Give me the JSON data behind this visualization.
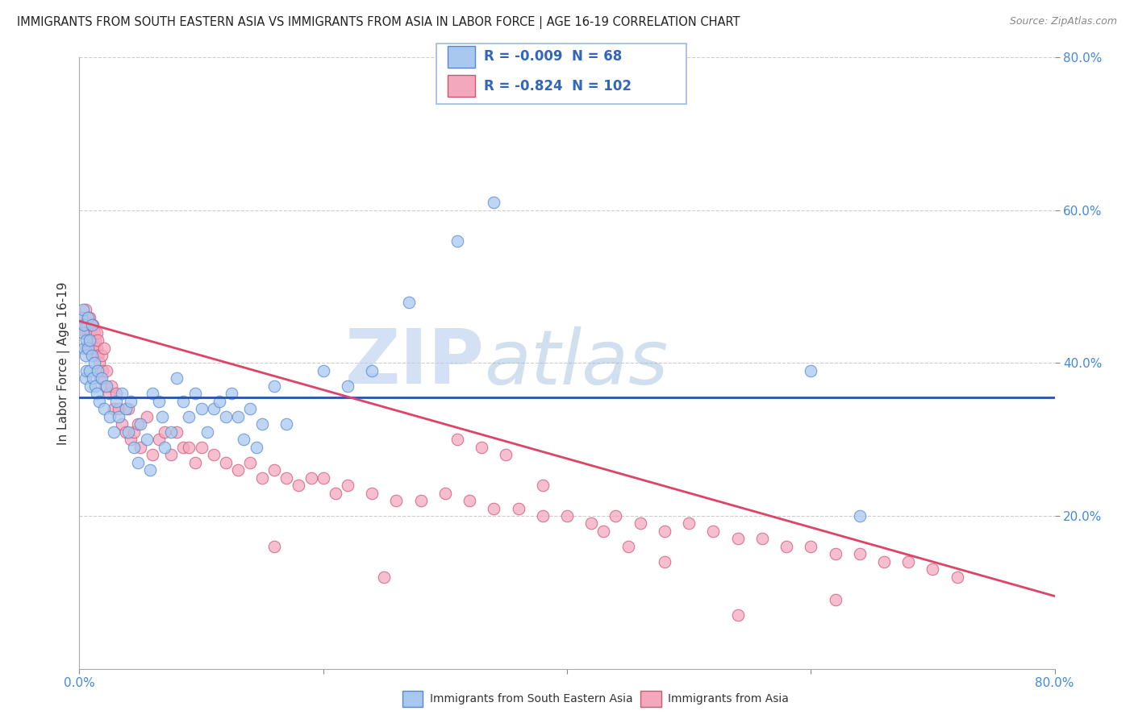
{
  "title": "IMMIGRANTS FROM SOUTH EASTERN ASIA VS IMMIGRANTS FROM ASIA IN LABOR FORCE | AGE 16-19 CORRELATION CHART",
  "source": "Source: ZipAtlas.com",
  "ylabel": "In Labor Force | Age 16-19",
  "xlim": [
    0.0,
    0.8
  ],
  "ylim": [
    0.0,
    0.8
  ],
  "xticks": [
    0.0,
    0.2,
    0.4,
    0.6,
    0.8
  ],
  "yticks": [
    0.2,
    0.4,
    0.6,
    0.8
  ],
  "grid_color": "#cccccc",
  "background_color": "#ffffff",
  "blue_R": "-0.009",
  "blue_N": "68",
  "pink_R": "-0.824",
  "pink_N": "102",
  "blue_color": "#A8C8F0",
  "pink_color": "#F4A8BE",
  "blue_edge_color": "#5588CC",
  "pink_edge_color": "#CC5577",
  "blue_line_color": "#2255AA",
  "pink_line_color": "#DD4466",
  "watermark_zip": "ZIP",
  "watermark_atlas": "atlas",
  "legend_label_blue": "Immigrants from South Eastern Asia",
  "legend_label_pink": "Immigrants from Asia",
  "blue_trend_y0": 0.355,
  "blue_trend_y1": 0.355,
  "pink_trend_y0": 0.455,
  "pink_trend_y1": 0.095,
  "blue_scatter_x": [
    0.002,
    0.003,
    0.003,
    0.004,
    0.004,
    0.005,
    0.005,
    0.006,
    0.006,
    0.007,
    0.007,
    0.008,
    0.008,
    0.009,
    0.01,
    0.01,
    0.011,
    0.012,
    0.013,
    0.014,
    0.015,
    0.016,
    0.018,
    0.02,
    0.022,
    0.025,
    0.028,
    0.03,
    0.032,
    0.035,
    0.038,
    0.04,
    0.042,
    0.045,
    0.048,
    0.05,
    0.055,
    0.058,
    0.06,
    0.065,
    0.068,
    0.07,
    0.075,
    0.08,
    0.085,
    0.09,
    0.095,
    0.1,
    0.105,
    0.11,
    0.115,
    0.12,
    0.125,
    0.13,
    0.135,
    0.14,
    0.145,
    0.15,
    0.16,
    0.17,
    0.2,
    0.22,
    0.24,
    0.27,
    0.31,
    0.34,
    0.6,
    0.64
  ],
  "blue_scatter_y": [
    0.46,
    0.44,
    0.47,
    0.42,
    0.45,
    0.41,
    0.38,
    0.43,
    0.39,
    0.42,
    0.46,
    0.39,
    0.43,
    0.37,
    0.41,
    0.45,
    0.38,
    0.4,
    0.37,
    0.36,
    0.39,
    0.35,
    0.38,
    0.34,
    0.37,
    0.33,
    0.31,
    0.35,
    0.33,
    0.36,
    0.34,
    0.31,
    0.35,
    0.29,
    0.27,
    0.32,
    0.3,
    0.26,
    0.36,
    0.35,
    0.33,
    0.29,
    0.31,
    0.38,
    0.35,
    0.33,
    0.36,
    0.34,
    0.31,
    0.34,
    0.35,
    0.33,
    0.36,
    0.33,
    0.3,
    0.34,
    0.29,
    0.32,
    0.37,
    0.32,
    0.39,
    0.37,
    0.39,
    0.48,
    0.56,
    0.61,
    0.39,
    0.2
  ],
  "pink_scatter_x": [
    0.002,
    0.003,
    0.004,
    0.005,
    0.005,
    0.006,
    0.006,
    0.007,
    0.007,
    0.008,
    0.008,
    0.009,
    0.009,
    0.01,
    0.01,
    0.011,
    0.011,
    0.012,
    0.012,
    0.013,
    0.013,
    0.014,
    0.014,
    0.015,
    0.015,
    0.016,
    0.017,
    0.018,
    0.019,
    0.02,
    0.021,
    0.022,
    0.024,
    0.026,
    0.028,
    0.03,
    0.032,
    0.035,
    0.038,
    0.04,
    0.042,
    0.045,
    0.048,
    0.05,
    0.055,
    0.06,
    0.065,
    0.07,
    0.075,
    0.08,
    0.085,
    0.09,
    0.095,
    0.1,
    0.11,
    0.12,
    0.13,
    0.14,
    0.15,
    0.16,
    0.17,
    0.18,
    0.19,
    0.2,
    0.21,
    0.22,
    0.24,
    0.26,
    0.28,
    0.3,
    0.32,
    0.34,
    0.36,
    0.38,
    0.4,
    0.42,
    0.44,
    0.46,
    0.48,
    0.5,
    0.52,
    0.54,
    0.56,
    0.58,
    0.6,
    0.62,
    0.64,
    0.66,
    0.68,
    0.7,
    0.72,
    0.31,
    0.33,
    0.35,
    0.38,
    0.43,
    0.45,
    0.48,
    0.16,
    0.25,
    0.54,
    0.62
  ],
  "pink_scatter_y": [
    0.46,
    0.45,
    0.46,
    0.44,
    0.47,
    0.42,
    0.45,
    0.44,
    0.46,
    0.42,
    0.46,
    0.44,
    0.43,
    0.45,
    0.42,
    0.43,
    0.45,
    0.42,
    0.44,
    0.43,
    0.41,
    0.42,
    0.44,
    0.41,
    0.43,
    0.4,
    0.38,
    0.41,
    0.39,
    0.42,
    0.37,
    0.39,
    0.36,
    0.37,
    0.34,
    0.36,
    0.34,
    0.32,
    0.31,
    0.34,
    0.3,
    0.31,
    0.32,
    0.29,
    0.33,
    0.28,
    0.3,
    0.31,
    0.28,
    0.31,
    0.29,
    0.29,
    0.27,
    0.29,
    0.28,
    0.27,
    0.26,
    0.27,
    0.25,
    0.26,
    0.25,
    0.24,
    0.25,
    0.25,
    0.23,
    0.24,
    0.23,
    0.22,
    0.22,
    0.23,
    0.22,
    0.21,
    0.21,
    0.2,
    0.2,
    0.19,
    0.2,
    0.19,
    0.18,
    0.19,
    0.18,
    0.17,
    0.17,
    0.16,
    0.16,
    0.15,
    0.15,
    0.14,
    0.14,
    0.13,
    0.12,
    0.3,
    0.29,
    0.28,
    0.24,
    0.18,
    0.16,
    0.14,
    0.16,
    0.12,
    0.07,
    0.09
  ]
}
